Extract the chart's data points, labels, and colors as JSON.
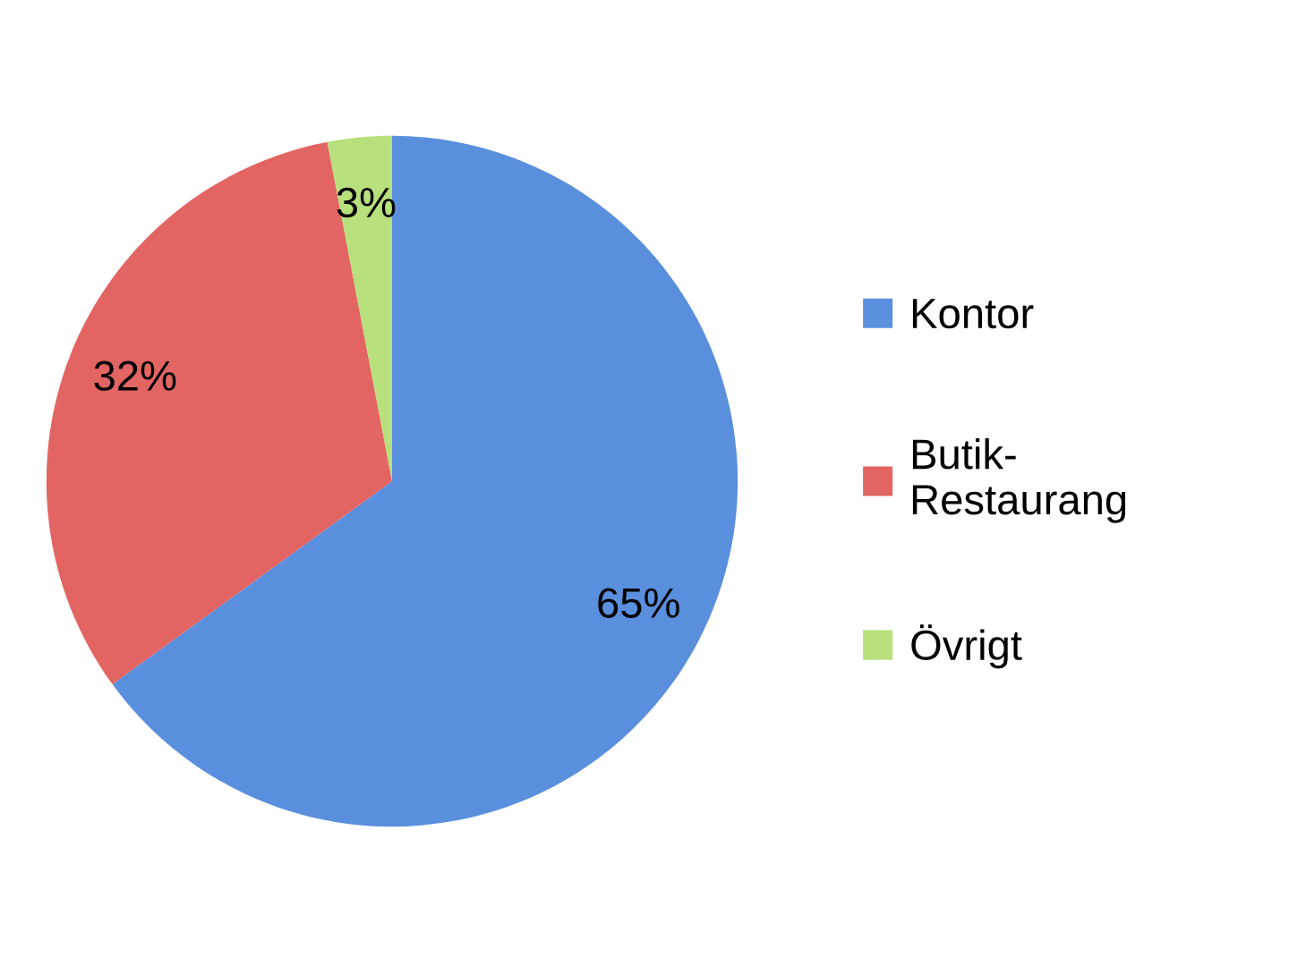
{
  "chart_data": {
    "type": "pie",
    "categories": [
      "Kontor",
      "Butik-\nRestaurang",
      "Övrigt"
    ],
    "values": [
      65,
      32,
      3
    ],
    "colors": [
      "#5a8fde",
      "#e26563",
      "#b8e07c"
    ],
    "value_labels": [
      "65%",
      "32%",
      "3%"
    ],
    "legend": "right"
  }
}
